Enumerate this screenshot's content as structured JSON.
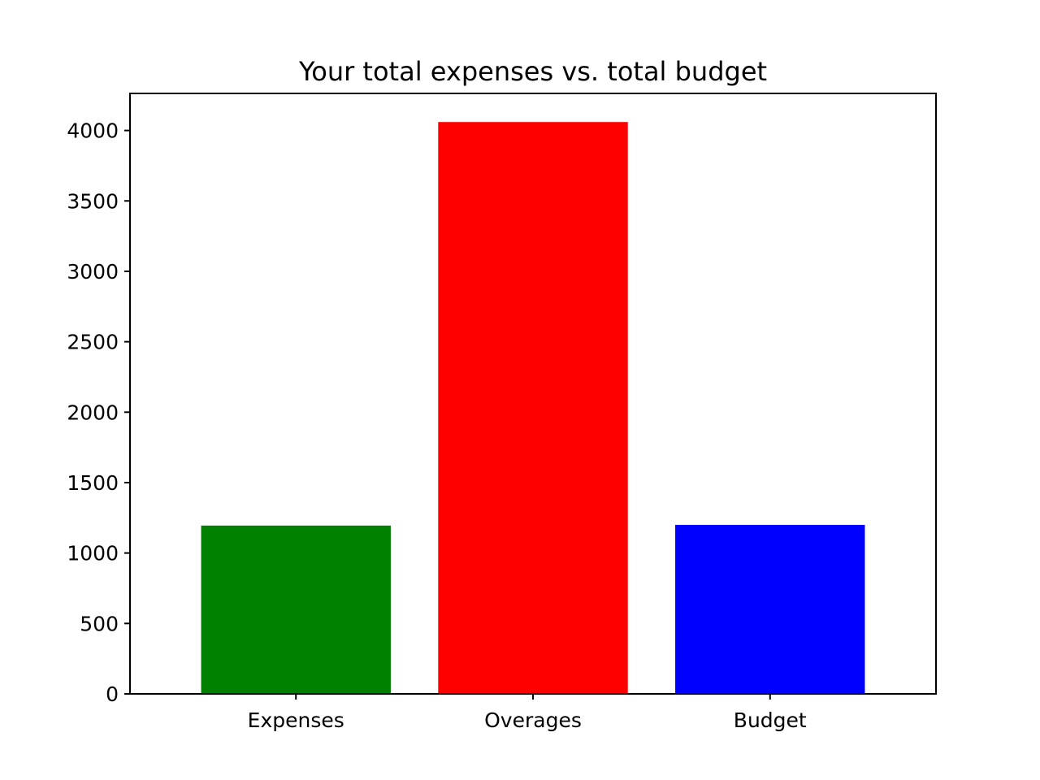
{
  "chart_data": {
    "type": "bar",
    "title": "Your total expenses vs. total budget",
    "xlabel": "",
    "ylabel": "",
    "categories": [
      "Expenses",
      "Overages",
      "Budget"
    ],
    "values": [
      1195,
      4060,
      1200
    ],
    "colors": [
      "#008000",
      "#ff0000",
      "#0000ff"
    ],
    "ylim": [
      0,
      4263
    ],
    "yticks": [
      0,
      500,
      1000,
      1500,
      2000,
      2500,
      3000,
      3500,
      4000
    ],
    "grid": false,
    "legend": "none"
  }
}
